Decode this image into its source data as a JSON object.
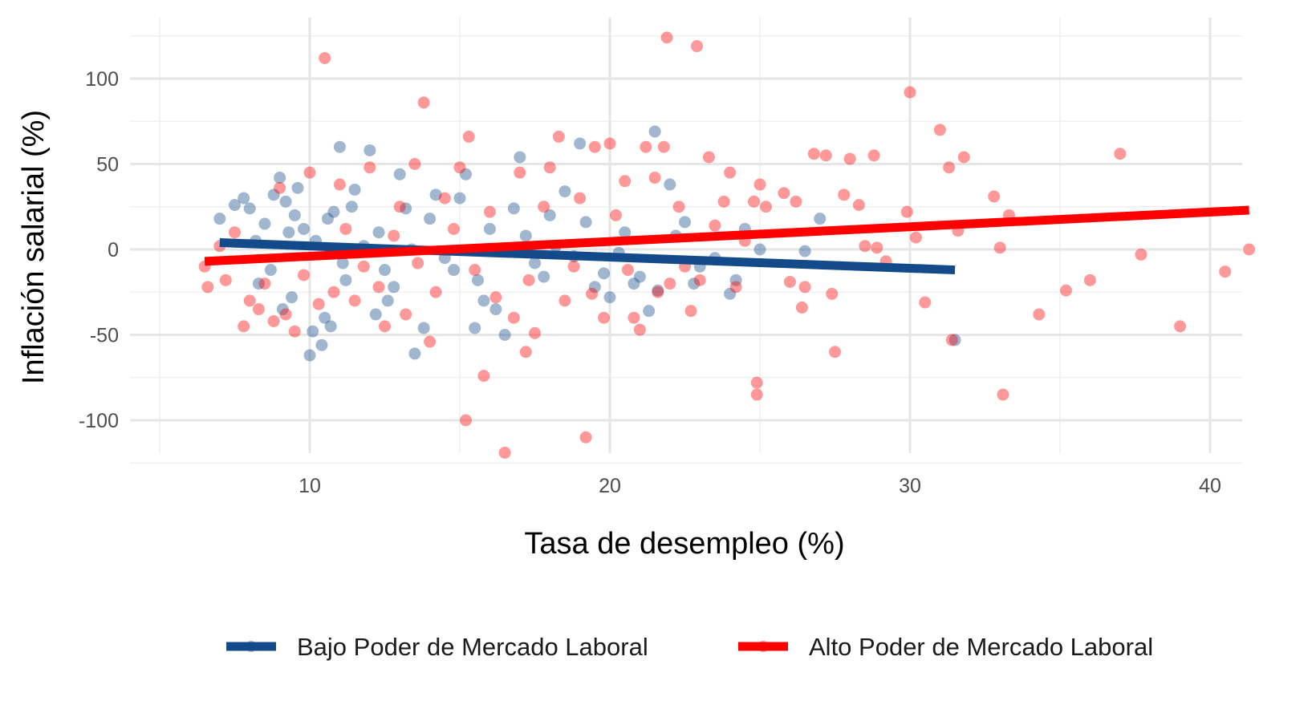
{
  "chart_data": {
    "type": "scatter",
    "title": "",
    "xlabel": "Tasa de desempleo (%)",
    "ylabel": "Inflación salarial (%)",
    "xlim": [
      5,
      43
    ],
    "ylim": [
      -128,
      135
    ],
    "x_ticks": [
      10,
      20,
      30,
      40
    ],
    "y_ticks": [
      -100,
      -50,
      0,
      50,
      100
    ],
    "grid": true,
    "legend_position": "bottom",
    "series": [
      {
        "name": "Bajo Poder de Mercado Laboral",
        "color": "#134B8A",
        "points": [
          [
            7,
            18
          ],
          [
            7.5,
            26
          ],
          [
            7.8,
            30
          ],
          [
            8,
            24
          ],
          [
            8.3,
            -20
          ],
          [
            8.5,
            15
          ],
          [
            8.8,
            32
          ],
          [
            9,
            42
          ],
          [
            9.2,
            28
          ],
          [
            9.5,
            20
          ],
          [
            9.8,
            12
          ],
          [
            10,
            -62
          ],
          [
            10.2,
            5
          ],
          [
            10.5,
            -40
          ],
          [
            10.8,
            22
          ],
          [
            11,
            60
          ],
          [
            11.2,
            -18
          ],
          [
            11.5,
            35
          ],
          [
            12,
            58
          ],
          [
            12.3,
            10
          ],
          [
            12.6,
            -30
          ],
          [
            13,
            44
          ],
          [
            13.5,
            -61
          ],
          [
            14,
            18
          ],
          [
            14.5,
            -5
          ],
          [
            15,
            30
          ],
          [
            15.5,
            -46
          ],
          [
            16,
            12
          ],
          [
            16.5,
            -50
          ],
          [
            17,
            54
          ],
          [
            17.5,
            -8
          ],
          [
            18,
            20
          ],
          [
            18.5,
            34
          ],
          [
            19,
            62
          ],
          [
            19.5,
            -22
          ],
          [
            20,
            -28
          ],
          [
            20.5,
            10
          ],
          [
            21,
            -16
          ],
          [
            21.5,
            69
          ],
          [
            22,
            38
          ],
          [
            22.5,
            16
          ],
          [
            23,
            -10
          ],
          [
            24,
            -26
          ],
          [
            24.5,
            12
          ],
          [
            25,
            0
          ],
          [
            26.5,
            -1
          ],
          [
            27,
            18
          ],
          [
            31.5,
            -53
          ],
          [
            8.2,
            5
          ],
          [
            8.7,
            -12
          ],
          [
            9.1,
            -35
          ],
          [
            9.4,
            -28
          ],
          [
            9.6,
            36
          ],
          [
            10.1,
            -48
          ],
          [
            10.4,
            -56
          ],
          [
            10.7,
            -45
          ],
          [
            11.1,
            -8
          ],
          [
            11.4,
            25
          ],
          [
            11.8,
            2
          ],
          [
            12.2,
            -38
          ],
          [
            12.8,
            -22
          ],
          [
            13.2,
            24
          ],
          [
            13.8,
            -46
          ],
          [
            14.2,
            32
          ],
          [
            14.8,
            -12
          ],
          [
            15.2,
            44
          ],
          [
            15.8,
            -30
          ],
          [
            16.2,
            -35
          ],
          [
            16.8,
            24
          ],
          [
            17.2,
            8
          ],
          [
            17.8,
            -16
          ],
          [
            18.2,
            2
          ],
          [
            18.8,
            -4
          ],
          [
            19.2,
            16
          ],
          [
            19.8,
            -14
          ],
          [
            20.3,
            -2
          ],
          [
            20.8,
            -20
          ],
          [
            21.3,
            -36
          ],
          [
            21.6,
            -24
          ],
          [
            22.2,
            8
          ],
          [
            22.8,
            -20
          ],
          [
            23.5,
            -5
          ],
          [
            24.2,
            -18
          ],
          [
            9.3,
            10
          ],
          [
            10.6,
            18
          ],
          [
            12.5,
            -12
          ],
          [
            13.4,
            0
          ],
          [
            15.6,
            -18
          ]
        ],
        "trend": [
          [
            7,
            4
          ],
          [
            31.5,
            -12
          ]
        ]
      },
      {
        "name": "Alto Poder de Mercado Laboral",
        "color": "#FF0000",
        "points": [
          [
            6.5,
            -10
          ],
          [
            6.6,
            -22
          ],
          [
            7,
            2
          ],
          [
            7.2,
            -18
          ],
          [
            7.5,
            10
          ],
          [
            7.8,
            -45
          ],
          [
            8,
            -30
          ],
          [
            8.3,
            -35
          ],
          [
            8.8,
            -42
          ],
          [
            9,
            36
          ],
          [
            9.5,
            -48
          ],
          [
            10,
            45
          ],
          [
            10.5,
            112
          ],
          [
            10.8,
            -25
          ],
          [
            11,
            38
          ],
          [
            11.5,
            -30
          ],
          [
            12,
            48
          ],
          [
            12.5,
            -45
          ],
          [
            13,
            25
          ],
          [
            13.5,
            50
          ],
          [
            13.8,
            86
          ],
          [
            14,
            -54
          ],
          [
            14.5,
            30
          ],
          [
            15,
            48
          ],
          [
            15.2,
            -100
          ],
          [
            15.3,
            66
          ],
          [
            15.8,
            -74
          ],
          [
            16,
            22
          ],
          [
            16.5,
            -119
          ],
          [
            16.8,
            -40
          ],
          [
            17,
            45
          ],
          [
            17.2,
            -60
          ],
          [
            17.5,
            -49
          ],
          [
            17.8,
            25
          ],
          [
            18,
            48
          ],
          [
            18.3,
            66
          ],
          [
            18.8,
            -10
          ],
          [
            19,
            30
          ],
          [
            19.2,
            -110
          ],
          [
            19.5,
            60
          ],
          [
            19.8,
            -40
          ],
          [
            20,
            62
          ],
          [
            20.2,
            20
          ],
          [
            20.5,
            40
          ],
          [
            20.8,
            -40
          ],
          [
            21,
            -47
          ],
          [
            21.2,
            60
          ],
          [
            21.5,
            42
          ],
          [
            21.8,
            60
          ],
          [
            21.9,
            124
          ],
          [
            22,
            -20
          ],
          [
            22.3,
            25
          ],
          [
            22.7,
            -36
          ],
          [
            22.9,
            119
          ],
          [
            23,
            -18
          ],
          [
            23.3,
            54
          ],
          [
            23.5,
            14
          ],
          [
            23.8,
            28
          ],
          [
            24,
            45
          ],
          [
            24.2,
            -22
          ],
          [
            24.5,
            5
          ],
          [
            24.8,
            28
          ],
          [
            25,
            38
          ],
          [
            24.9,
            -78
          ],
          [
            24.9,
            -85
          ],
          [
            25.2,
            25
          ],
          [
            25.8,
            33
          ],
          [
            26,
            -19
          ],
          [
            26.2,
            28
          ],
          [
            26.4,
            -34
          ],
          [
            26.5,
            -22
          ],
          [
            26.8,
            56
          ],
          [
            27.2,
            55
          ],
          [
            27.4,
            -26
          ],
          [
            27.5,
            -60
          ],
          [
            27.8,
            32
          ],
          [
            28,
            53
          ],
          [
            28.3,
            26
          ],
          [
            28.5,
            2
          ],
          [
            28.8,
            55
          ],
          [
            28.9,
            1
          ],
          [
            29.2,
            -7
          ],
          [
            29.9,
            22
          ],
          [
            30,
            92
          ],
          [
            30.2,
            7
          ],
          [
            30.5,
            -31
          ],
          [
            31,
            70
          ],
          [
            31.3,
            48
          ],
          [
            31.4,
            -53
          ],
          [
            31.6,
            11
          ],
          [
            31.8,
            54
          ],
          [
            32.8,
            31
          ],
          [
            33,
            1
          ],
          [
            33.1,
            -85
          ],
          [
            33.3,
            20
          ],
          [
            34.3,
            -38
          ],
          [
            35.2,
            -24
          ],
          [
            36,
            -18
          ],
          [
            37,
            56
          ],
          [
            37.7,
            -3
          ],
          [
            39,
            -45
          ],
          [
            40.5,
            -13
          ],
          [
            41.3,
            0
          ],
          [
            8.5,
            -20
          ],
          [
            9.2,
            -38
          ],
          [
            9.8,
            -15
          ],
          [
            10.3,
            -32
          ],
          [
            11.2,
            12
          ],
          [
            11.8,
            -10
          ],
          [
            12.3,
            -22
          ],
          [
            12.8,
            8
          ],
          [
            13.2,
            -38
          ],
          [
            13.6,
            -8
          ],
          [
            14.2,
            -25
          ],
          [
            14.8,
            12
          ],
          [
            15.5,
            -12
          ],
          [
            16.2,
            -28
          ],
          [
            17.3,
            -18
          ],
          [
            18.5,
            -30
          ],
          [
            19.4,
            -26
          ],
          [
            20.6,
            -12
          ],
          [
            21.6,
            -25
          ],
          [
            22.5,
            -10
          ]
        ],
        "trend": [
          [
            6.5,
            -7
          ],
          [
            41.3,
            23
          ]
        ]
      }
    ]
  }
}
